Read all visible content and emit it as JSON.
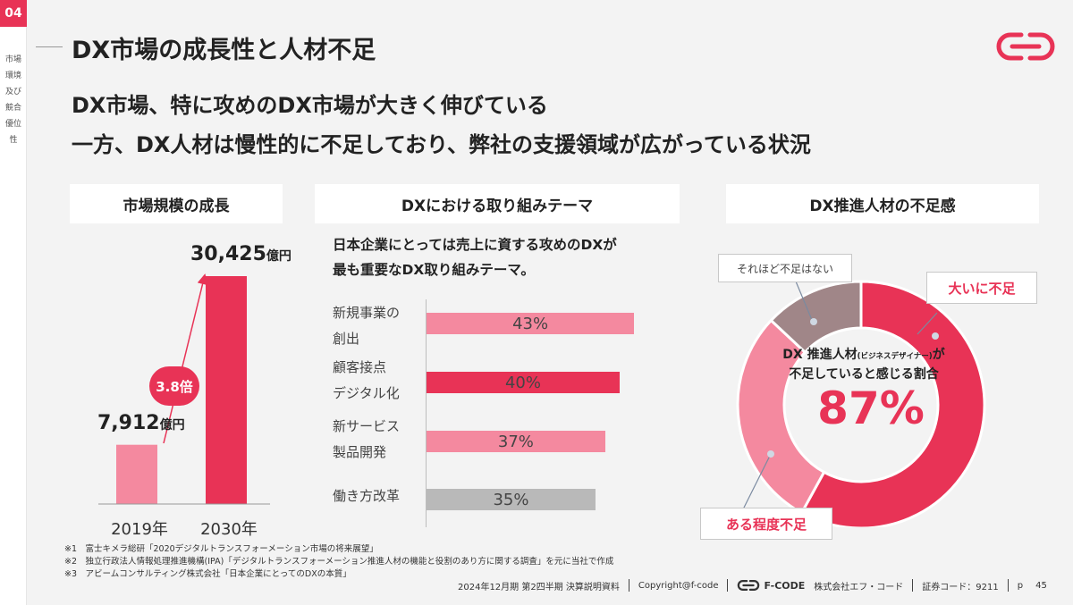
{
  "section": {
    "number": "04",
    "label": "市場環境及び競合優位性"
  },
  "page_title": "DX市場の成長性と人材不足",
  "headline": {
    "line1": "DX市場、特に攻めのDX市場が大きく伸びている",
    "line2": "一方、DX人材は慢性的に不足しており、弊社の支援領域が広がっている状況"
  },
  "colors": {
    "accent": "#e83356",
    "light_pink": "#f4899f",
    "gray": "#b9b9b9",
    "mauve": "#a08688"
  },
  "market": {
    "header": "市場規模の成長",
    "label_2019_num": "7,912",
    "label_2030_num": "30,425",
    "unit": "億円",
    "growth_badge": "3.8倍",
    "year_2019": "2019年",
    "year_2030": "2030年"
  },
  "themes": {
    "header": "DXにおける取り組みテーマ",
    "desc_line1": "日本企業にとっては売上に資する攻めのDXが",
    "desc_line2": "最も重要なDX取り組みテーマ。",
    "items": [
      {
        "label1": "新規事業の",
        "label2": "創出",
        "value_label": "43%"
      },
      {
        "label1": "顧客接点",
        "label2": "デジタル化",
        "value_label": "40%"
      },
      {
        "label1": "新サービス",
        "label2": "製品開発",
        "value_label": "37%"
      },
      {
        "label1": "働き方改革",
        "label2": "",
        "value_label": "35%"
      }
    ]
  },
  "talent": {
    "header": "DX推進人材の不足感",
    "center_line1_a": "DX 推進人材",
    "center_line1_small": "(ビジネスデザイナー)",
    "center_line1_b": "が",
    "center_line2": "不足していると感じる割合",
    "center_value": "87%",
    "callout_big": "大いに不足",
    "callout_some": "ある程度不足",
    "callout_not": "それほど不足はない"
  },
  "chart_data": [
    {
      "type": "bar",
      "title": "市場規模の成長",
      "categories": [
        "2019年",
        "2030年"
      ],
      "values": [
        7912,
        30425
      ],
      "unit": "億円",
      "annotation": "3.8倍"
    },
    {
      "type": "bar",
      "orientation": "horizontal",
      "title": "DXにおける取り組みテーマ",
      "categories": [
        "新規事業の創出",
        "顧客接点デジタル化",
        "新サービス製品開発",
        "働き方改革"
      ],
      "values": [
        43,
        40,
        37,
        35
      ],
      "unit": "%"
    },
    {
      "type": "pie",
      "title": "DX推進人材の不足感",
      "categories": [
        "大いに不足",
        "ある程度不足",
        "それほど不足はない"
      ],
      "values": [
        58,
        29,
        13
      ],
      "colors": [
        "#e83356",
        "#f4899f",
        "#a08688"
      ],
      "center_value": "87%"
    }
  ],
  "notes": [
    "※1　富士キメラ総研「2020デジタルトランスフォーメーション市場の将来展望」",
    "※2　独立行政法人情報処理推進機構(IPA)「デジタルトランスフォーメーション推進人材の機能と役割のあり方に関する調査」を元に当社で作成",
    "※3　アビームコンサルティング株式会社「日本企業にとってのDXの本質」"
  ],
  "footer": {
    "period": "2024年12月期 第2四半期 決算説明資料",
    "copyright": "Copyright@f-code",
    "brand": "F-CODE",
    "company": "株式会社エフ・コード",
    "ticker": "証券コード：9211",
    "page_prefix": "p",
    "page_number": "45"
  }
}
